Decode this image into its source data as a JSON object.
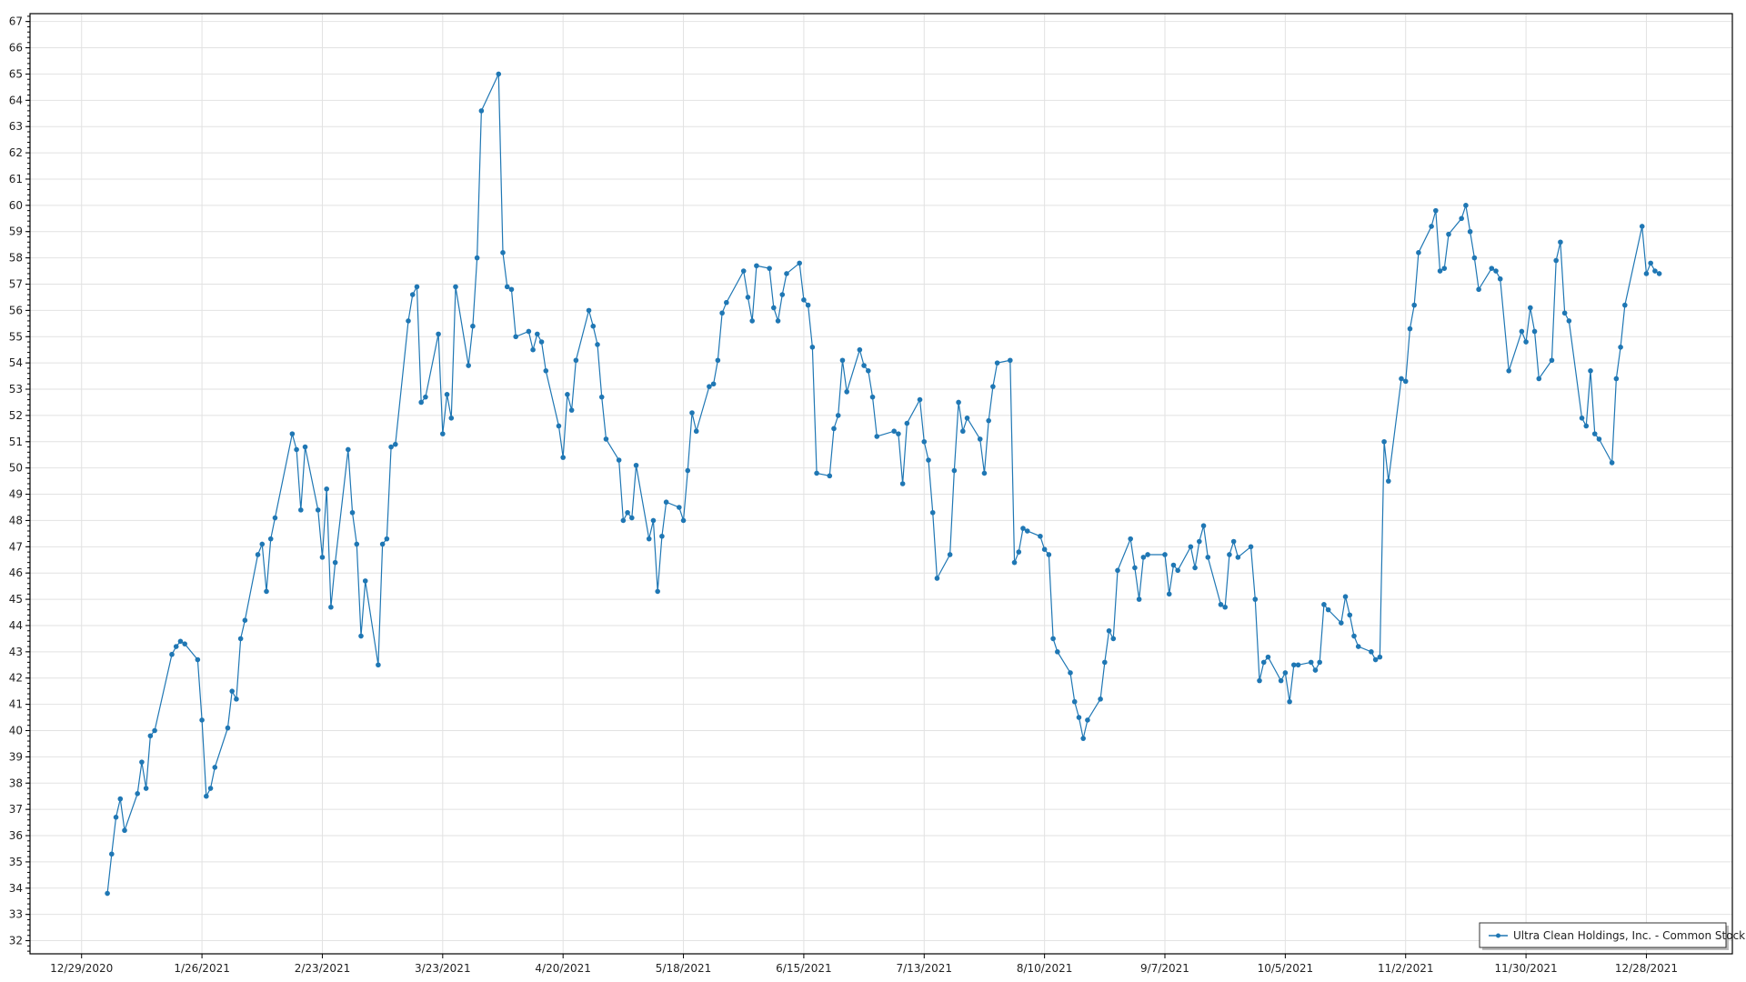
{
  "chart_data": {
    "type": "line",
    "title": "",
    "xlabel": "",
    "ylabel": "",
    "xlim": [
      "2020-12-17",
      "2022-01-17"
    ],
    "ylim": [
      31.5,
      67.3
    ],
    "grid": true,
    "legend_position": "bottom-right",
    "x_ticks": [
      "12/29/2020",
      "1/26/2021",
      "2/23/2021",
      "3/23/2021",
      "4/20/2021",
      "5/18/2021",
      "6/15/2021",
      "7/13/2021",
      "8/10/2021",
      "9/7/2021",
      "10/5/2021",
      "11/2/2021",
      "11/30/2021",
      "12/28/2021"
    ],
    "y_ticks": [
      32,
      33,
      34,
      35,
      36,
      37,
      38,
      39,
      40,
      41,
      42,
      43,
      44,
      45,
      46,
      47,
      48,
      49,
      50,
      51,
      52,
      53,
      54,
      55,
      56,
      57,
      58,
      59,
      60,
      61,
      62,
      63,
      64,
      65,
      66,
      67
    ],
    "series": [
      {
        "name": "Ultra Clean Holdings, Inc. - Common Stock",
        "color": "#1f77b4",
        "points": [
          [
            "2021-01-04",
            33.8
          ],
          [
            "2021-01-05",
            35.3
          ],
          [
            "2021-01-06",
            36.7
          ],
          [
            "2021-01-07",
            37.4
          ],
          [
            "2021-01-08",
            36.2
          ],
          [
            "2021-01-11",
            37.6
          ],
          [
            "2021-01-12",
            38.8
          ],
          [
            "2021-01-13",
            37.8
          ],
          [
            "2021-01-14",
            39.8
          ],
          [
            "2021-01-15",
            40.0
          ],
          [
            "2021-01-19",
            42.9
          ],
          [
            "2021-01-20",
            43.2
          ],
          [
            "2021-01-21",
            43.4
          ],
          [
            "2021-01-22",
            43.3
          ],
          [
            "2021-01-25",
            42.7
          ],
          [
            "2021-01-26",
            40.4
          ],
          [
            "2021-01-27",
            37.5
          ],
          [
            "2021-01-28",
            37.8
          ],
          [
            "2021-01-29",
            38.6
          ],
          [
            "2021-02-01",
            40.1
          ],
          [
            "2021-02-02",
            41.5
          ],
          [
            "2021-02-03",
            41.2
          ],
          [
            "2021-02-04",
            43.5
          ],
          [
            "2021-02-05",
            44.2
          ],
          [
            "2021-02-08",
            46.7
          ],
          [
            "2021-02-09",
            47.1
          ],
          [
            "2021-02-10",
            45.3
          ],
          [
            "2021-02-11",
            47.3
          ],
          [
            "2021-02-12",
            48.1
          ],
          [
            "2021-02-16",
            51.3
          ],
          [
            "2021-02-17",
            50.7
          ],
          [
            "2021-02-18",
            48.4
          ],
          [
            "2021-02-19",
            50.8
          ],
          [
            "2021-02-22",
            48.4
          ],
          [
            "2021-02-23",
            46.6
          ],
          [
            "2021-02-24",
            49.2
          ],
          [
            "2021-02-25",
            44.7
          ],
          [
            "2021-02-26",
            46.4
          ],
          [
            "2021-03-01",
            50.7
          ],
          [
            "2021-03-02",
            48.3
          ],
          [
            "2021-03-03",
            47.1
          ],
          [
            "2021-03-04",
            43.6
          ],
          [
            "2021-03-05",
            45.7
          ],
          [
            "2021-03-08",
            42.5
          ],
          [
            "2021-03-09",
            47.1
          ],
          [
            "2021-03-10",
            47.3
          ],
          [
            "2021-03-11",
            50.8
          ],
          [
            "2021-03-12",
            50.9
          ],
          [
            "2021-03-15",
            55.6
          ],
          [
            "2021-03-16",
            56.6
          ],
          [
            "2021-03-17",
            56.9
          ],
          [
            "2021-03-18",
            52.5
          ],
          [
            "2021-03-19",
            52.7
          ],
          [
            "2021-03-22",
            55.1
          ],
          [
            "2021-03-23",
            51.3
          ],
          [
            "2021-03-24",
            52.8
          ],
          [
            "2021-03-25",
            51.9
          ],
          [
            "2021-03-26",
            56.9
          ],
          [
            "2021-03-29",
            53.9
          ],
          [
            "2021-03-30",
            55.4
          ],
          [
            "2021-03-31",
            58.0
          ],
          [
            "2021-04-01",
            63.6
          ],
          [
            "2021-04-05",
            65.0
          ],
          [
            "2021-04-06",
            58.2
          ],
          [
            "2021-04-07",
            56.9
          ],
          [
            "2021-04-08",
            56.8
          ],
          [
            "2021-04-09",
            55.0
          ],
          [
            "2021-04-12",
            55.2
          ],
          [
            "2021-04-13",
            54.5
          ],
          [
            "2021-04-14",
            55.1
          ],
          [
            "2021-04-15",
            54.8
          ],
          [
            "2021-04-16",
            53.7
          ],
          [
            "2021-04-19",
            51.6
          ],
          [
            "2021-04-20",
            50.4
          ],
          [
            "2021-04-21",
            52.8
          ],
          [
            "2021-04-22",
            52.2
          ],
          [
            "2021-04-23",
            54.1
          ],
          [
            "2021-04-26",
            56.0
          ],
          [
            "2021-04-27",
            55.4
          ],
          [
            "2021-04-28",
            54.7
          ],
          [
            "2021-04-29",
            52.7
          ],
          [
            "2021-04-30",
            51.1
          ],
          [
            "2021-05-03",
            50.3
          ],
          [
            "2021-05-04",
            48.0
          ],
          [
            "2021-05-05",
            48.3
          ],
          [
            "2021-05-06",
            48.1
          ],
          [
            "2021-05-07",
            50.1
          ],
          [
            "2021-05-10",
            47.3
          ],
          [
            "2021-05-11",
            48.0
          ],
          [
            "2021-05-12",
            45.3
          ],
          [
            "2021-05-13",
            47.4
          ],
          [
            "2021-05-14",
            48.7
          ],
          [
            "2021-05-17",
            48.5
          ],
          [
            "2021-05-18",
            48.0
          ],
          [
            "2021-05-19",
            49.9
          ],
          [
            "2021-05-20",
            52.1
          ],
          [
            "2021-05-21",
            51.4
          ],
          [
            "2021-05-24",
            53.1
          ],
          [
            "2021-05-25",
            53.2
          ],
          [
            "2021-05-26",
            54.1
          ],
          [
            "2021-05-27",
            55.9
          ],
          [
            "2021-05-28",
            56.3
          ],
          [
            "2021-06-01",
            57.5
          ],
          [
            "2021-06-02",
            56.5
          ],
          [
            "2021-06-03",
            55.6
          ],
          [
            "2021-06-04",
            57.7
          ],
          [
            "2021-06-07",
            57.6
          ],
          [
            "2021-06-08",
            56.1
          ],
          [
            "2021-06-09",
            55.6
          ],
          [
            "2021-06-10",
            56.6
          ],
          [
            "2021-06-11",
            57.4
          ],
          [
            "2021-06-14",
            57.8
          ],
          [
            "2021-06-15",
            56.4
          ],
          [
            "2021-06-16",
            56.2
          ],
          [
            "2021-06-17",
            54.6
          ],
          [
            "2021-06-18",
            49.8
          ],
          [
            "2021-06-21",
            49.7
          ],
          [
            "2021-06-22",
            51.5
          ],
          [
            "2021-06-23",
            52.0
          ],
          [
            "2021-06-24",
            54.1
          ],
          [
            "2021-06-25",
            52.9
          ],
          [
            "2021-06-28",
            54.5
          ],
          [
            "2021-06-29",
            53.9
          ],
          [
            "2021-06-30",
            53.7
          ],
          [
            "2021-07-01",
            52.7
          ],
          [
            "2021-07-02",
            51.2
          ],
          [
            "2021-07-06",
            51.4
          ],
          [
            "2021-07-07",
            51.3
          ],
          [
            "2021-07-08",
            49.4
          ],
          [
            "2021-07-09",
            51.7
          ],
          [
            "2021-07-12",
            52.6
          ],
          [
            "2021-07-13",
            51.0
          ],
          [
            "2021-07-14",
            50.3
          ],
          [
            "2021-07-15",
            48.3
          ],
          [
            "2021-07-16",
            45.8
          ],
          [
            "2021-07-19",
            46.7
          ],
          [
            "2021-07-20",
            49.9
          ],
          [
            "2021-07-21",
            52.5
          ],
          [
            "2021-07-22",
            51.4
          ],
          [
            "2021-07-23",
            51.9
          ],
          [
            "2021-07-26",
            51.1
          ],
          [
            "2021-07-27",
            49.8
          ],
          [
            "2021-07-28",
            51.8
          ],
          [
            "2021-07-29",
            53.1
          ],
          [
            "2021-07-30",
            54.0
          ],
          [
            "2021-08-02",
            54.1
          ],
          [
            "2021-08-03",
            46.4
          ],
          [
            "2021-08-04",
            46.8
          ],
          [
            "2021-08-05",
            47.7
          ],
          [
            "2021-08-06",
            47.6
          ],
          [
            "2021-08-09",
            47.4
          ],
          [
            "2021-08-10",
            46.9
          ],
          [
            "2021-08-11",
            46.7
          ],
          [
            "2021-08-12",
            43.5
          ],
          [
            "2021-08-13",
            43.0
          ],
          [
            "2021-08-16",
            42.2
          ],
          [
            "2021-08-17",
            41.1
          ],
          [
            "2021-08-18",
            40.5
          ],
          [
            "2021-08-19",
            39.7
          ],
          [
            "2021-08-20",
            40.4
          ],
          [
            "2021-08-23",
            41.2
          ],
          [
            "2021-08-24",
            42.6
          ],
          [
            "2021-08-25",
            43.8
          ],
          [
            "2021-08-26",
            43.5
          ],
          [
            "2021-08-27",
            46.1
          ],
          [
            "2021-08-30",
            47.3
          ],
          [
            "2021-08-31",
            46.2
          ],
          [
            "2021-09-01",
            45.0
          ],
          [
            "2021-09-02",
            46.6
          ],
          [
            "2021-09-03",
            46.7
          ],
          [
            "2021-09-07",
            46.7
          ],
          [
            "2021-09-08",
            45.2
          ],
          [
            "2021-09-09",
            46.3
          ],
          [
            "2021-09-10",
            46.1
          ],
          [
            "2021-09-13",
            47.0
          ],
          [
            "2021-09-14",
            46.2
          ],
          [
            "2021-09-15",
            47.2
          ],
          [
            "2021-09-16",
            47.8
          ],
          [
            "2021-09-17",
            46.6
          ],
          [
            "2021-09-20",
            44.8
          ],
          [
            "2021-09-21",
            44.7
          ],
          [
            "2021-09-22",
            46.7
          ],
          [
            "2021-09-23",
            47.2
          ],
          [
            "2021-09-24",
            46.6
          ],
          [
            "2021-09-27",
            47.0
          ],
          [
            "2021-09-28",
            45.0
          ],
          [
            "2021-09-29",
            41.9
          ],
          [
            "2021-09-30",
            42.6
          ],
          [
            "2021-10-01",
            42.8
          ],
          [
            "2021-10-04",
            41.9
          ],
          [
            "2021-10-05",
            42.2
          ],
          [
            "2021-10-06",
            41.1
          ],
          [
            "2021-10-07",
            42.5
          ],
          [
            "2021-10-08",
            42.5
          ],
          [
            "2021-10-11",
            42.6
          ],
          [
            "2021-10-12",
            42.3
          ],
          [
            "2021-10-13",
            42.6
          ],
          [
            "2021-10-14",
            44.8
          ],
          [
            "2021-10-15",
            44.6
          ],
          [
            "2021-10-18",
            44.1
          ],
          [
            "2021-10-19",
            45.1
          ],
          [
            "2021-10-20",
            44.4
          ],
          [
            "2021-10-21",
            43.6
          ],
          [
            "2021-10-22",
            43.2
          ],
          [
            "2021-10-25",
            43.0
          ],
          [
            "2021-10-26",
            42.7
          ],
          [
            "2021-10-27",
            42.8
          ],
          [
            "2021-10-28",
            51.0
          ],
          [
            "2021-10-29",
            49.5
          ],
          [
            "2021-11-01",
            53.4
          ],
          [
            "2021-11-02",
            53.3
          ],
          [
            "2021-11-03",
            55.3
          ],
          [
            "2021-11-04",
            56.2
          ],
          [
            "2021-11-05",
            58.2
          ],
          [
            "2021-11-08",
            59.2
          ],
          [
            "2021-11-09",
            59.8
          ],
          [
            "2021-11-10",
            57.5
          ],
          [
            "2021-11-11",
            57.6
          ],
          [
            "2021-11-12",
            58.9
          ],
          [
            "2021-11-15",
            59.5
          ],
          [
            "2021-11-16",
            60.0
          ],
          [
            "2021-11-17",
            59.0
          ],
          [
            "2021-11-18",
            58.0
          ],
          [
            "2021-11-19",
            56.8
          ],
          [
            "2021-11-22",
            57.6
          ],
          [
            "2021-11-23",
            57.5
          ],
          [
            "2021-11-24",
            57.2
          ],
          [
            "2021-11-26",
            53.7
          ],
          [
            "2021-11-29",
            55.2
          ],
          [
            "2021-11-30",
            54.8
          ],
          [
            "2021-12-01",
            56.1
          ],
          [
            "2021-12-02",
            55.2
          ],
          [
            "2021-12-03",
            53.4
          ],
          [
            "2021-12-06",
            54.1
          ],
          [
            "2021-12-07",
            57.9
          ],
          [
            "2021-12-08",
            58.6
          ],
          [
            "2021-12-09",
            55.9
          ],
          [
            "2021-12-10",
            55.6
          ],
          [
            "2021-12-13",
            51.9
          ],
          [
            "2021-12-14",
            51.6
          ],
          [
            "2021-12-15",
            53.7
          ],
          [
            "2021-12-16",
            51.3
          ],
          [
            "2021-12-17",
            51.1
          ],
          [
            "2021-12-20",
            50.2
          ],
          [
            "2021-12-21",
            53.4
          ],
          [
            "2021-12-22",
            54.6
          ],
          [
            "2021-12-23",
            56.2
          ],
          [
            "2021-12-27",
            59.2
          ],
          [
            "2021-12-28",
            57.4
          ],
          [
            "2021-12-29",
            57.8
          ],
          [
            "2021-12-30",
            57.5
          ],
          [
            "2021-12-31",
            57.4
          ]
        ]
      }
    ]
  }
}
